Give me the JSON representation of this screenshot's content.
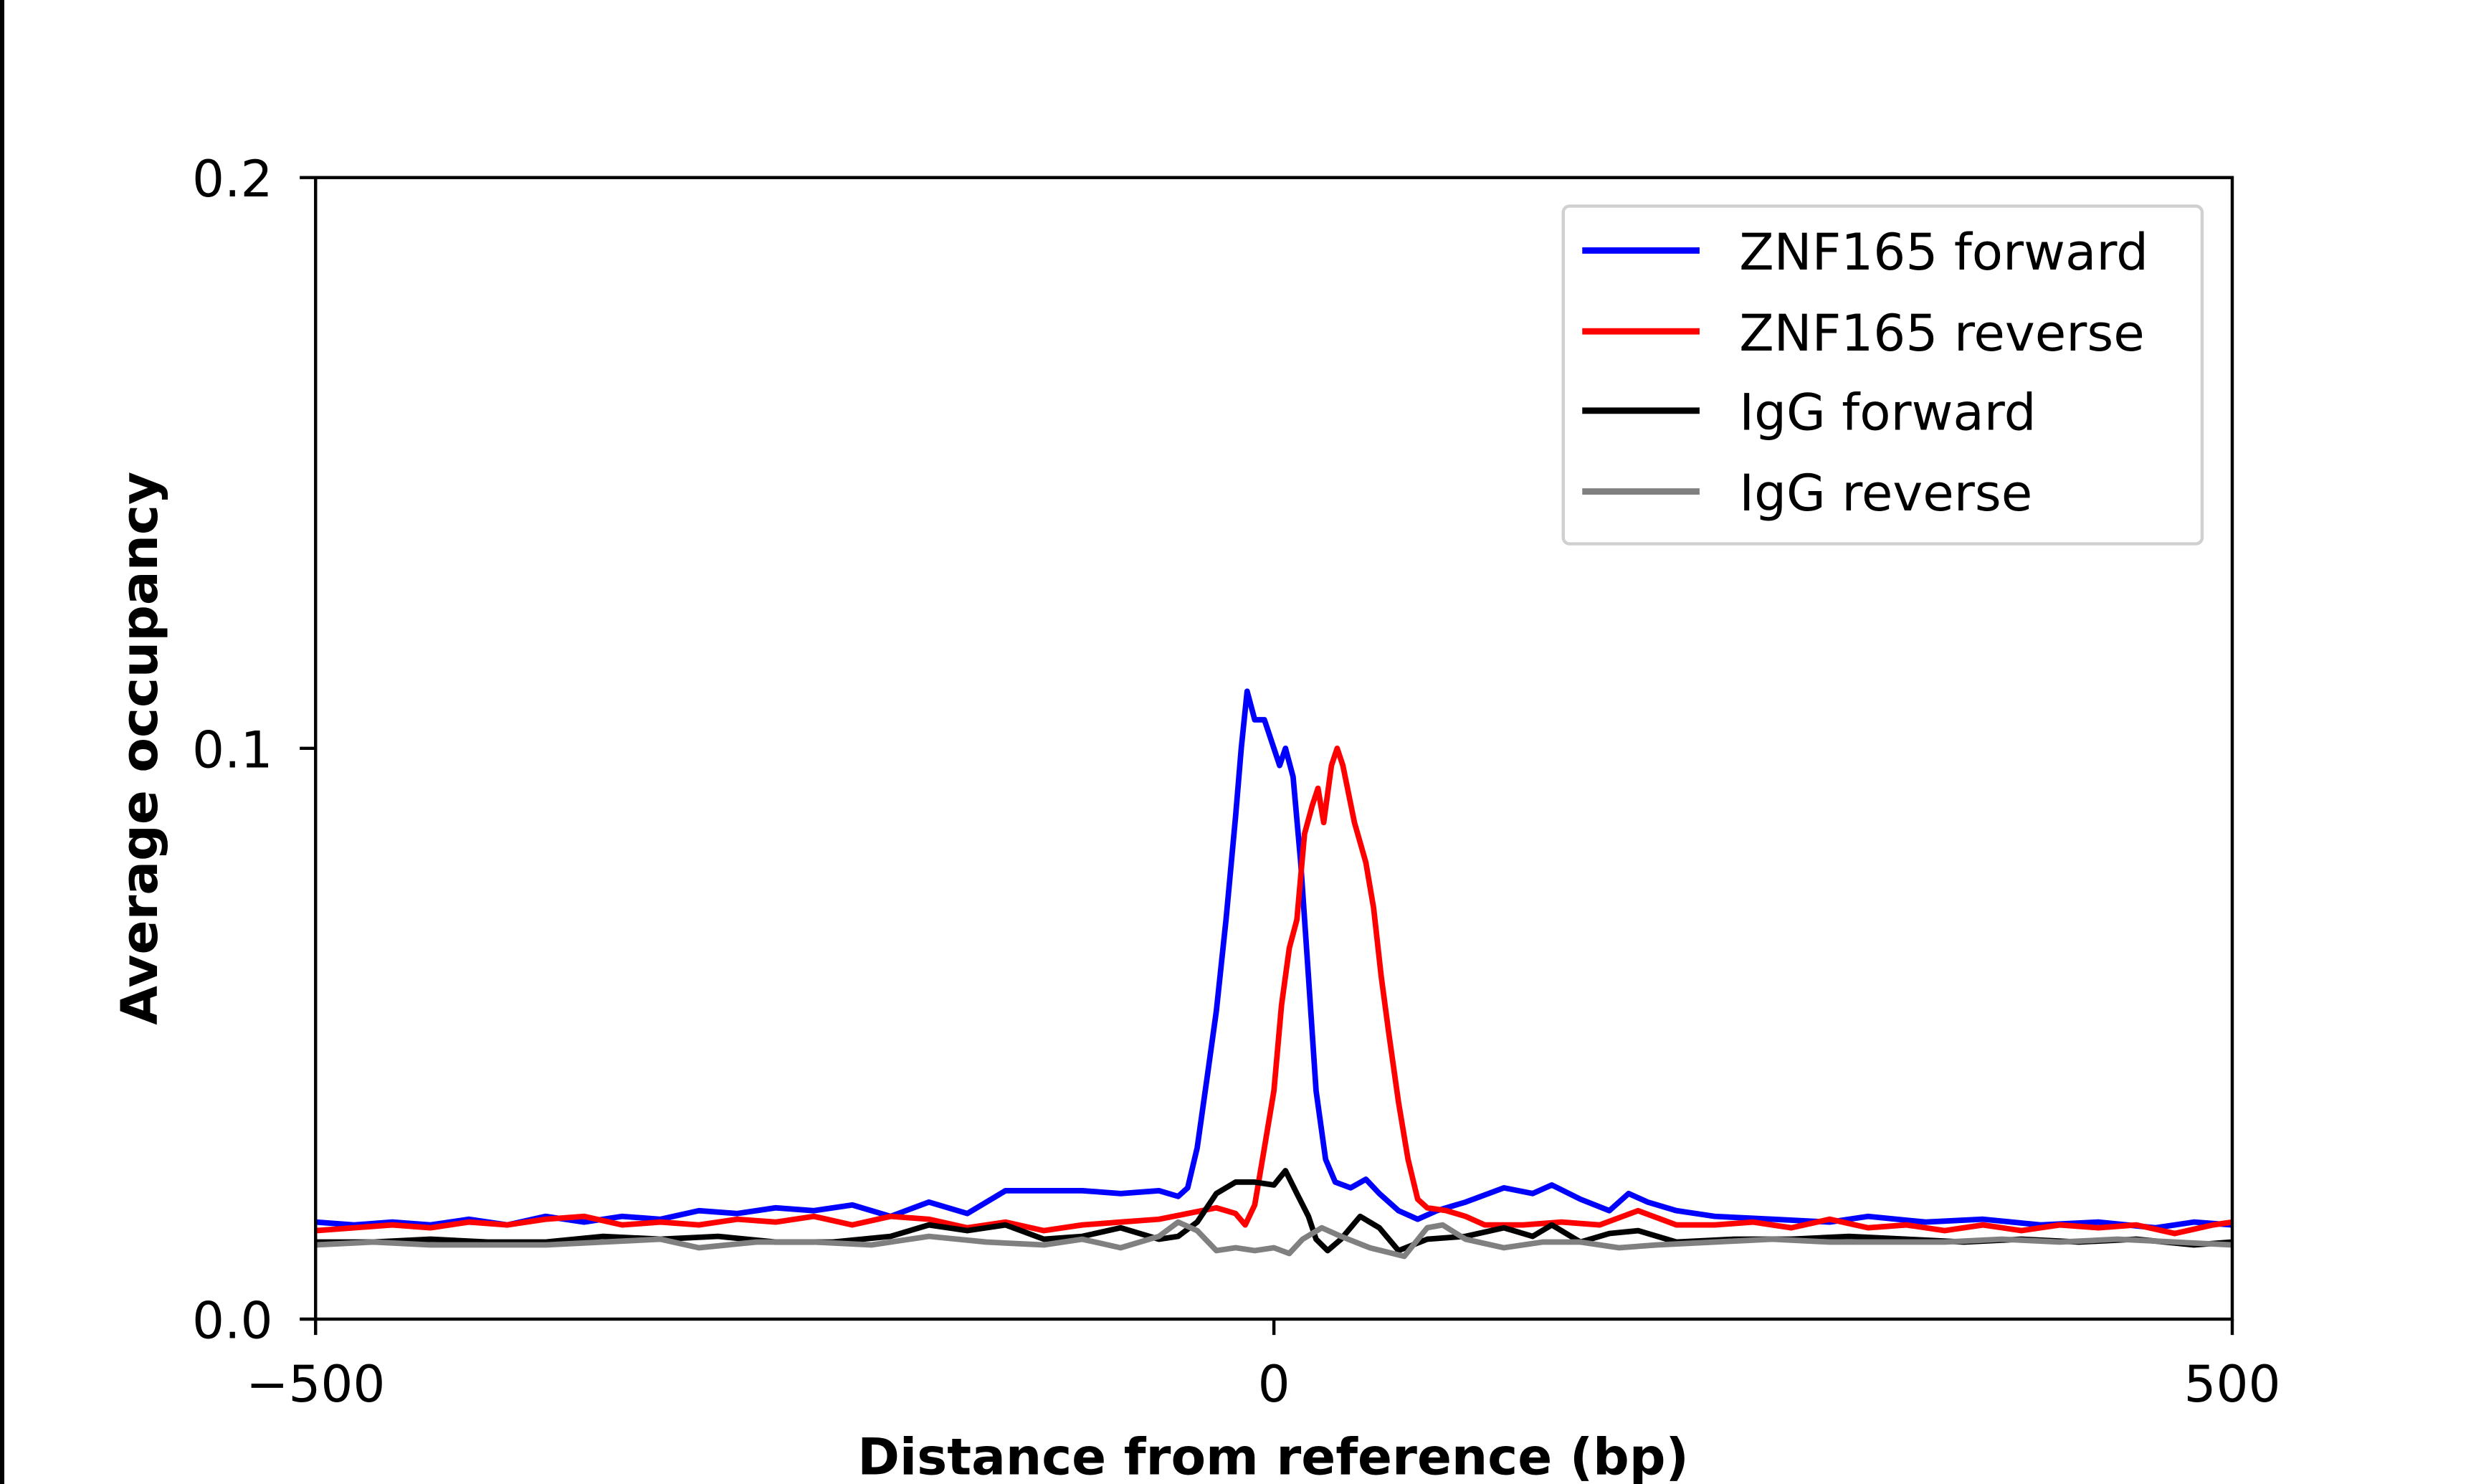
{
  "chart_data": {
    "type": "line",
    "xlabel": "Distance from reference (bp)",
    "ylabel": "Average occupancy",
    "xlim": [
      -500,
      500
    ],
    "ylim": [
      0,
      0.2
    ],
    "xticks": [
      "−500",
      "0",
      "500"
    ],
    "xtick_values": [
      -500,
      0,
      500
    ],
    "yticks": [
      "0.0",
      "0.1",
      "0.2"
    ],
    "ytick_values": [
      0,
      0.1,
      0.2
    ],
    "grid": false,
    "legend": "top-right",
    "series": [
      {
        "name": "ZNF165 forward",
        "color": "#0000ff",
        "points": [
          [
            -500,
            0.017
          ],
          [
            -480,
            0.0165
          ],
          [
            -460,
            0.017
          ],
          [
            -440,
            0.0165
          ],
          [
            -420,
            0.0175
          ],
          [
            -400,
            0.0165
          ],
          [
            -380,
            0.018
          ],
          [
            -360,
            0.017
          ],
          [
            -340,
            0.018
          ],
          [
            -320,
            0.0175
          ],
          [
            -300,
            0.019
          ],
          [
            -280,
            0.0185
          ],
          [
            -260,
            0.0195
          ],
          [
            -240,
            0.019
          ],
          [
            -220,
            0.02
          ],
          [
            -200,
            0.018
          ],
          [
            -180,
            0.0205
          ],
          [
            -160,
            0.0185
          ],
          [
            -140,
            0.0225
          ],
          [
            -120,
            0.0225
          ],
          [
            -100,
            0.0225
          ],
          [
            -80,
            0.022
          ],
          [
            -60,
            0.0225
          ],
          [
            -50,
            0.0215
          ],
          [
            -45,
            0.023
          ],
          [
            -40,
            0.03
          ],
          [
            -35,
            0.042
          ],
          [
            -30,
            0.054
          ],
          [
            -25,
            0.07
          ],
          [
            -20,
            0.088
          ],
          [
            -17,
            0.1
          ],
          [
            -14,
            0.11
          ],
          [
            -10,
            0.105
          ],
          [
            -5,
            0.105
          ],
          [
            0,
            0.1
          ],
          [
            3,
            0.097
          ],
          [
            6,
            0.1
          ],
          [
            10,
            0.095
          ],
          [
            14,
            0.08
          ],
          [
            18,
            0.06
          ],
          [
            22,
            0.04
          ],
          [
            27,
            0.028
          ],
          [
            32,
            0.024
          ],
          [
            40,
            0.023
          ],
          [
            48,
            0.0245
          ],
          [
            55,
            0.022
          ],
          [
            65,
            0.019
          ],
          [
            75,
            0.0175
          ],
          [
            85,
            0.019
          ],
          [
            100,
            0.0205
          ],
          [
            120,
            0.023
          ],
          [
            135,
            0.022
          ],
          [
            145,
            0.0235
          ],
          [
            160,
            0.021
          ],
          [
            175,
            0.019
          ],
          [
            185,
            0.022
          ],
          [
            195,
            0.0205
          ],
          [
            210,
            0.019
          ],
          [
            230,
            0.018
          ],
          [
            260,
            0.0175
          ],
          [
            290,
            0.017
          ],
          [
            310,
            0.018
          ],
          [
            340,
            0.017
          ],
          [
            370,
            0.0175
          ],
          [
            400,
            0.0165
          ],
          [
            430,
            0.017
          ],
          [
            460,
            0.016
          ],
          [
            480,
            0.017
          ],
          [
            500,
            0.0165
          ]
        ]
      },
      {
        "name": "ZNF165 reverse",
        "color": "#ff0000",
        "points": [
          [
            -500,
            0.0155
          ],
          [
            -480,
            0.016
          ],
          [
            -460,
            0.0165
          ],
          [
            -440,
            0.016
          ],
          [
            -420,
            0.017
          ],
          [
            -400,
            0.0165
          ],
          [
            -380,
            0.0175
          ],
          [
            -360,
            0.018
          ],
          [
            -340,
            0.0165
          ],
          [
            -320,
            0.017
          ],
          [
            -300,
            0.0165
          ],
          [
            -280,
            0.0175
          ],
          [
            -260,
            0.017
          ],
          [
            -240,
            0.018
          ],
          [
            -220,
            0.0165
          ],
          [
            -200,
            0.018
          ],
          [
            -180,
            0.0175
          ],
          [
            -160,
            0.016
          ],
          [
            -140,
            0.017
          ],
          [
            -120,
            0.0155
          ],
          [
            -100,
            0.0165
          ],
          [
            -80,
            0.017
          ],
          [
            -60,
            0.0175
          ],
          [
            -45,
            0.0185
          ],
          [
            -30,
            0.0195
          ],
          [
            -20,
            0.0185
          ],
          [
            -15,
            0.0165
          ],
          [
            -10,
            0.02
          ],
          [
            -5,
            0.03
          ],
          [
            0,
            0.04
          ],
          [
            4,
            0.055
          ],
          [
            8,
            0.065
          ],
          [
            12,
            0.07
          ],
          [
            16,
            0.085
          ],
          [
            20,
            0.09
          ],
          [
            23,
            0.093
          ],
          [
            26,
            0.087
          ],
          [
            30,
            0.097
          ],
          [
            33,
            0.1
          ],
          [
            36,
            0.097
          ],
          [
            42,
            0.087
          ],
          [
            48,
            0.08
          ],
          [
            52,
            0.072
          ],
          [
            56,
            0.06
          ],
          [
            60,
            0.05
          ],
          [
            65,
            0.038
          ],
          [
            70,
            0.028
          ],
          [
            75,
            0.021
          ],
          [
            80,
            0.0195
          ],
          [
            90,
            0.019
          ],
          [
            100,
            0.018
          ],
          [
            110,
            0.0165
          ],
          [
            130,
            0.0165
          ],
          [
            150,
            0.017
          ],
          [
            170,
            0.0165
          ],
          [
            190,
            0.019
          ],
          [
            210,
            0.0165
          ],
          [
            230,
            0.0165
          ],
          [
            250,
            0.017
          ],
          [
            270,
            0.016
          ],
          [
            290,
            0.0175
          ],
          [
            310,
            0.016
          ],
          [
            330,
            0.0165
          ],
          [
            350,
            0.0155
          ],
          [
            370,
            0.0165
          ],
          [
            390,
            0.0155
          ],
          [
            410,
            0.0165
          ],
          [
            430,
            0.016
          ],
          [
            450,
            0.0165
          ],
          [
            470,
            0.015
          ],
          [
            490,
            0.0165
          ],
          [
            500,
            0.017
          ]
        ]
      },
      {
        "name": "IgG forward",
        "color": "#000000",
        "points": [
          [
            -500,
            0.0135
          ],
          [
            -470,
            0.0135
          ],
          [
            -440,
            0.014
          ],
          [
            -410,
            0.0135
          ],
          [
            -380,
            0.0135
          ],
          [
            -350,
            0.0145
          ],
          [
            -320,
            0.014
          ],
          [
            -290,
            0.0145
          ],
          [
            -260,
            0.0135
          ],
          [
            -230,
            0.0135
          ],
          [
            -200,
            0.0145
          ],
          [
            -180,
            0.0165
          ],
          [
            -160,
            0.0155
          ],
          [
            -140,
            0.0165
          ],
          [
            -120,
            0.014
          ],
          [
            -100,
            0.0145
          ],
          [
            -80,
            0.016
          ],
          [
            -60,
            0.014
          ],
          [
            -50,
            0.0145
          ],
          [
            -40,
            0.017
          ],
          [
            -30,
            0.022
          ],
          [
            -20,
            0.024
          ],
          [
            -10,
            0.024
          ],
          [
            0,
            0.0235
          ],
          [
            6,
            0.026
          ],
          [
            12,
            0.022
          ],
          [
            18,
            0.018
          ],
          [
            22,
            0.014
          ],
          [
            28,
            0.012
          ],
          [
            35,
            0.014
          ],
          [
            45,
            0.018
          ],
          [
            55,
            0.016
          ],
          [
            65,
            0.012
          ],
          [
            80,
            0.014
          ],
          [
            100,
            0.0145
          ],
          [
            120,
            0.016
          ],
          [
            135,
            0.0145
          ],
          [
            145,
            0.0165
          ],
          [
            160,
            0.0135
          ],
          [
            175,
            0.015
          ],
          [
            190,
            0.0155
          ],
          [
            210,
            0.0135
          ],
          [
            240,
            0.014
          ],
          [
            270,
            0.014
          ],
          [
            300,
            0.0145
          ],
          [
            330,
            0.014
          ],
          [
            360,
            0.0135
          ],
          [
            390,
            0.014
          ],
          [
            420,
            0.0135
          ],
          [
            450,
            0.014
          ],
          [
            480,
            0.013
          ],
          [
            500,
            0.0135
          ]
        ]
      },
      {
        "name": "IgG reverse",
        "color": "#808080",
        "points": [
          [
            -500,
            0.013
          ],
          [
            -470,
            0.0135
          ],
          [
            -440,
            0.013
          ],
          [
            -410,
            0.013
          ],
          [
            -380,
            0.013
          ],
          [
            -350,
            0.0135
          ],
          [
            -320,
            0.014
          ],
          [
            -300,
            0.0125
          ],
          [
            -270,
            0.0135
          ],
          [
            -240,
            0.0135
          ],
          [
            -210,
            0.013
          ],
          [
            -180,
            0.0145
          ],
          [
            -150,
            0.0135
          ],
          [
            -120,
            0.013
          ],
          [
            -100,
            0.014
          ],
          [
            -80,
            0.0125
          ],
          [
            -60,
            0.0145
          ],
          [
            -50,
            0.017
          ],
          [
            -40,
            0.0155
          ],
          [
            -30,
            0.012
          ],
          [
            -20,
            0.0125
          ],
          [
            -10,
            0.012
          ],
          [
            0,
            0.0125
          ],
          [
            8,
            0.0115
          ],
          [
            15,
            0.014
          ],
          [
            25,
            0.016
          ],
          [
            35,
            0.0145
          ],
          [
            50,
            0.0125
          ],
          [
            68,
            0.011
          ],
          [
            80,
            0.016
          ],
          [
            88,
            0.0165
          ],
          [
            100,
            0.014
          ],
          [
            120,
            0.0125
          ],
          [
            140,
            0.0135
          ],
          [
            160,
            0.0135
          ],
          [
            180,
            0.0125
          ],
          [
            200,
            0.013
          ],
          [
            230,
            0.0135
          ],
          [
            260,
            0.014
          ],
          [
            290,
            0.0135
          ],
          [
            320,
            0.0135
          ],
          [
            350,
            0.0135
          ],
          [
            380,
            0.014
          ],
          [
            410,
            0.0135
          ],
          [
            440,
            0.014
          ],
          [
            470,
            0.0135
          ],
          [
            500,
            0.013
          ]
        ]
      }
    ]
  }
}
